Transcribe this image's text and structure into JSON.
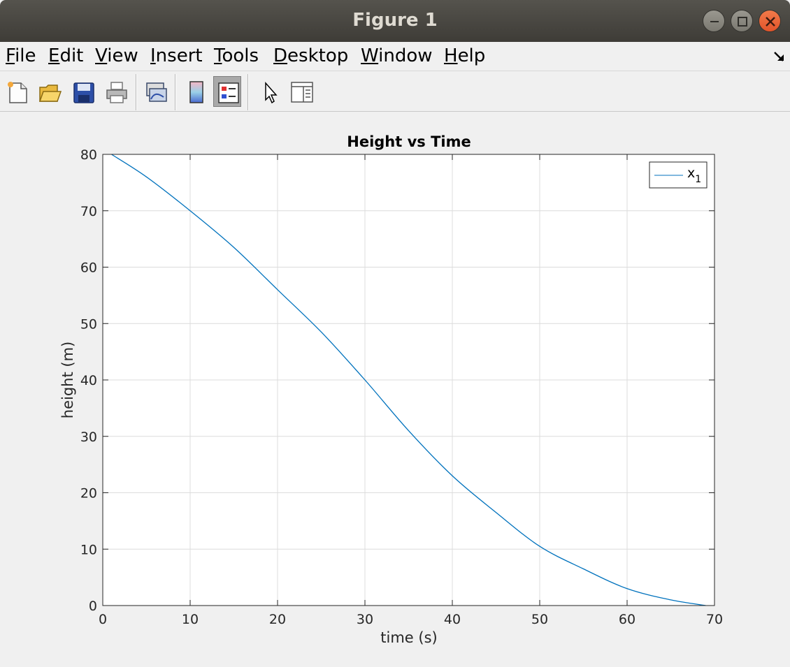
{
  "window": {
    "title": "Figure 1"
  },
  "menu": {
    "items": [
      {
        "label": "File",
        "mnemonic": "F",
        "rest": "ile"
      },
      {
        "label": "Edit",
        "mnemonic": "E",
        "rest": "dit"
      },
      {
        "label": "View",
        "mnemonic": "V",
        "rest": "iew"
      },
      {
        "label": "Insert",
        "mnemonic": "I",
        "rest": "nsert"
      },
      {
        "label": "Tools",
        "mnemonic": "T",
        "rest": "ools"
      },
      {
        "label": "Desktop",
        "mnemonic": "D",
        "rest": "esktop"
      },
      {
        "label": "Window",
        "mnemonic": "W",
        "rest": "indow"
      },
      {
        "label": "Help",
        "mnemonic": "H",
        "rest": "elp"
      }
    ]
  },
  "toolbar": {
    "icons": [
      "new-figure-icon",
      "open-file-icon",
      "save-icon",
      "print-icon",
      "link-plot-icon",
      "colorbar-icon",
      "legend-icon",
      "edit-plot-arrow-icon",
      "property-inspector-icon"
    ],
    "pressed": "legend-icon"
  },
  "colors": {
    "line": "#0072bd",
    "grid": "#dcdcdc",
    "axis": "#262626"
  },
  "chart_data": {
    "type": "line",
    "title": "Height vs Time",
    "xlabel": "time (s)",
    "ylabel": "height (m)",
    "xlim": [
      0,
      70
    ],
    "ylim": [
      0,
      80
    ],
    "xticks": [
      0,
      10,
      20,
      30,
      40,
      50,
      60,
      70
    ],
    "yticks": [
      0,
      10,
      20,
      30,
      40,
      50,
      60,
      70,
      80
    ],
    "grid": true,
    "legend": {
      "position": "top-right",
      "entry": "x",
      "subscript": "1"
    },
    "series": [
      {
        "name": "x1",
        "x": [
          1,
          5,
          10,
          15,
          20,
          25,
          30,
          35,
          40,
          45,
          50,
          55,
          60,
          65,
          69
        ],
        "y": [
          80,
          76,
          70,
          63.5,
          56,
          48.5,
          40,
          31,
          23,
          16.5,
          10.5,
          6.5,
          3,
          1,
          0
        ]
      }
    ]
  }
}
